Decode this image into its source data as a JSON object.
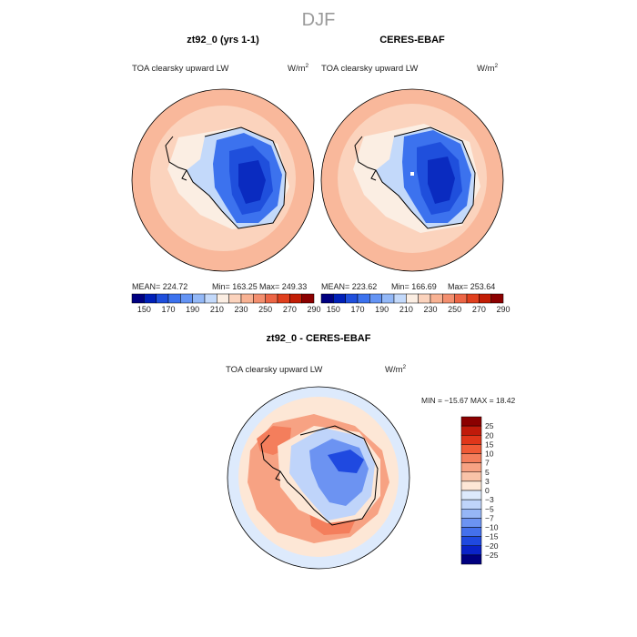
{
  "page_title": "DJF",
  "chart_data": [
    {
      "type": "heatmap",
      "projection": "south-polar-stereographic",
      "panel_title": "zt92_0 (yrs 1-1)",
      "variable_label": "TOA clearsky upward LW",
      "units_label": "W/m",
      "units_exp": "2",
      "stats": {
        "mean_label": "MEAN= 224.72",
        "min_label": "Min= 163.25",
        "max_label": "Max= 249.33"
      },
      "mean": 224.72,
      "min": 163.25,
      "max": 249.33,
      "colorbar": {
        "orientation": "horizontal",
        "tick_labels": [
          "150",
          "170",
          "190",
          "210",
          "230",
          "250",
          "270",
          "290"
        ],
        "colors": [
          "#000080",
          "#0020b8",
          "#1f4fdc",
          "#3c72ee",
          "#6494f4",
          "#93b8f7",
          "#c3d9fa",
          "#fbeee3",
          "#fbd3bd",
          "#f8b293",
          "#f38f6f",
          "#ec6646",
          "#e0401e",
          "#c21e06",
          "#8b0000"
        ]
      }
    },
    {
      "type": "heatmap",
      "projection": "south-polar-stereographic",
      "panel_title": "CERES-EBAF",
      "variable_label": "TOA clearsky upward LW",
      "units_label": "W/m",
      "units_exp": "2",
      "stats": {
        "mean_label": "MEAN= 223.62",
        "min_label": "Min= 166.69",
        "max_label": "Max= 253.64"
      },
      "mean": 223.62,
      "min": 166.69,
      "max": 253.64,
      "colorbar": {
        "orientation": "horizontal",
        "tick_labels": [
          "150",
          "170",
          "190",
          "210",
          "230",
          "250",
          "270",
          "290"
        ],
        "colors": [
          "#000080",
          "#0020b8",
          "#1f4fdc",
          "#3c72ee",
          "#6494f4",
          "#93b8f7",
          "#c3d9fa",
          "#fbeee3",
          "#fbd3bd",
          "#f8b293",
          "#f38f6f",
          "#ec6646",
          "#e0401e",
          "#c21e06",
          "#8b0000"
        ]
      }
    },
    {
      "type": "heatmap",
      "projection": "south-polar-stereographic",
      "panel_title": "zt92_0 - CERES-EBAF",
      "variable_label": "TOA clearsky upward LW",
      "units_label": "W/m",
      "units_exp": "2",
      "stats_label": "MIN = −15.67  MAX =  18.42",
      "min": -15.67,
      "max": 18.42,
      "colorbar": {
        "orientation": "vertical",
        "tick_labels": [
          "25",
          "20",
          "15",
          "10",
          "7",
          "5",
          "3",
          "0",
          "−3",
          "−5",
          "−7",
          "−10",
          "−15",
          "−20",
          "−25"
        ],
        "colors": [
          "#8b0000",
          "#c01a0a",
          "#e0361a",
          "#f05a36",
          "#f47e5c",
          "#f7a283",
          "#f9c3a8",
          "#fde7d6",
          "#ddeafc",
          "#bfd4fa",
          "#96b6f6",
          "#6c93f2",
          "#4470ec",
          "#1f49e0",
          "#0a23c8",
          "#000080"
        ]
      }
    }
  ],
  "colors": {
    "ocean_warm": "#f9b89b",
    "ocean_mid": "#fbd3bd",
    "sea_ice": "#fbeee3",
    "coast_blue": "#c3d9fa",
    "ice_mid": "#3c72ee",
    "ice_deep": "#1f4fdc",
    "ice_core": "#0a2bc0",
    "diff_neutral": "#fde7d6",
    "diff_warm": "#f47e5c",
    "diff_cool": "#6c93f2"
  }
}
